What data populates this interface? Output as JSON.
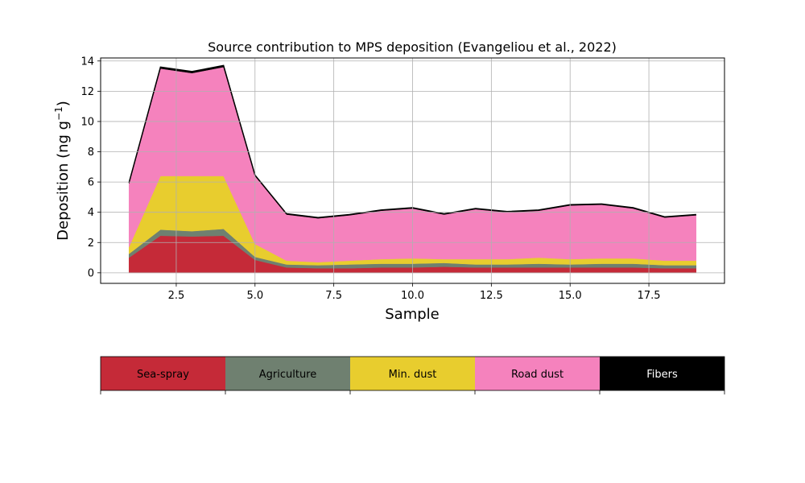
{
  "chart_data": {
    "type": "area",
    "stacked": true,
    "title": "Source contribution to MPS deposition (Evangeliou et al., 2022)",
    "xlabel": "Sample",
    "ylabel": "Deposition (ng g",
    "ylabel_superscript": "−1",
    "ylabel_suffix": ")",
    "xlim": [
      0.1,
      19.9
    ],
    "ylim": [
      -0.7,
      14.2
    ],
    "xticks": [
      2.5,
      5.0,
      7.5,
      10.0,
      12.5,
      15.0,
      17.5
    ],
    "xtick_labels": [
      "2.5",
      "5.0",
      "7.5",
      "10.0",
      "12.5",
      "15.0",
      "17.5"
    ],
    "yticks": [
      0,
      2,
      4,
      6,
      8,
      10,
      12,
      14
    ],
    "ytick_labels": [
      "0",
      "2",
      "4",
      "6",
      "8",
      "10",
      "12",
      "14"
    ],
    "grid": true,
    "x": [
      1,
      2,
      3,
      4,
      5,
      6,
      7,
      8,
      9,
      10,
      11,
      12,
      13,
      14,
      15,
      16,
      17,
      18,
      19
    ],
    "series": [
      {
        "name": "Sea-spray",
        "color": "#c52a38",
        "values": [
          1.0,
          2.45,
          2.4,
          2.45,
          0.85,
          0.35,
          0.3,
          0.3,
          0.35,
          0.35,
          0.4,
          0.35,
          0.35,
          0.35,
          0.35,
          0.35,
          0.35,
          0.3,
          0.3
        ]
      },
      {
        "name": "Agriculture",
        "color": "#6f8070",
        "values": [
          0.25,
          0.4,
          0.35,
          0.45,
          0.2,
          0.2,
          0.2,
          0.25,
          0.25,
          0.25,
          0.25,
          0.2,
          0.2,
          0.25,
          0.2,
          0.25,
          0.25,
          0.2,
          0.2
        ]
      },
      {
        "name": "Min. dust",
        "color": "#e8cd2e",
        "values": [
          0.45,
          3.55,
          3.65,
          3.5,
          0.85,
          0.25,
          0.2,
          0.25,
          0.3,
          0.35,
          0.25,
          0.35,
          0.35,
          0.4,
          0.35,
          0.35,
          0.35,
          0.3,
          0.3
        ]
      },
      {
        "name": "Road dust",
        "color": "#f582bd",
        "values": [
          4.2,
          7.1,
          6.8,
          7.2,
          4.5,
          3.05,
          2.9,
          3.0,
          3.2,
          3.3,
          2.95,
          3.3,
          3.1,
          3.1,
          3.55,
          3.55,
          3.3,
          2.85,
          3.0
        ]
      },
      {
        "name": "Fibers",
        "color": "#000000",
        "values": [
          0.05,
          0.1,
          0.1,
          0.1,
          0.05,
          0.05,
          0.05,
          0.05,
          0.05,
          0.05,
          0.05,
          0.05,
          0.05,
          0.05,
          0.05,
          0.05,
          0.05,
          0.05,
          0.05
        ]
      }
    ],
    "legend_colorbar": {
      "labels": [
        "Sea-spray",
        "Agriculture",
        "Min. dust",
        "Road dust",
        "Fibers"
      ],
      "colors": [
        "#c52a38",
        "#6f8070",
        "#e8cd2e",
        "#f582bd",
        "#000000"
      ],
      "text_colors": [
        "#000000",
        "#000000",
        "#000000",
        "#000000",
        "#ffffff"
      ]
    }
  }
}
